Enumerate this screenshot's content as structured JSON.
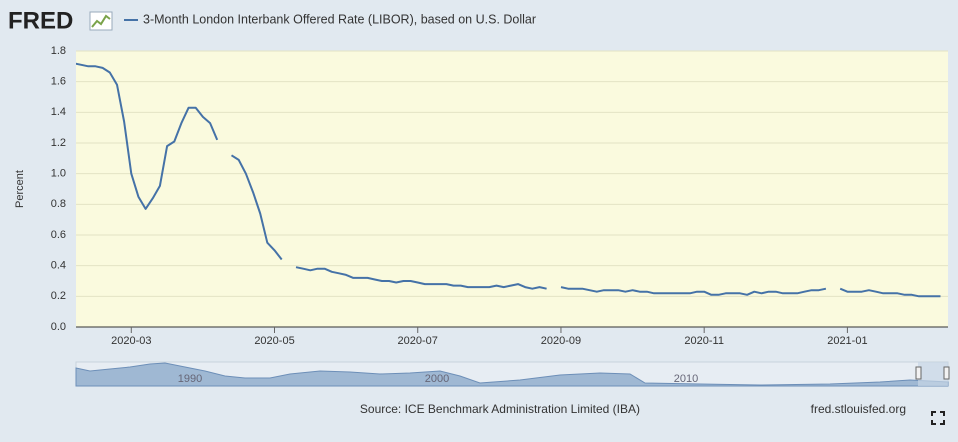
{
  "logo": "FRED",
  "chart_data": {
    "type": "line",
    "ylabel": "Percent",
    "categories": [
      null,
      null,
      null,
      null,
      null,
      null,
      null,
      null,
      "2020-03",
      null,
      null,
      null,
      null,
      null,
      null,
      null,
      null,
      null,
      null,
      null,
      null,
      null,
      null,
      null,
      null,
      null,
      null,
      null,
      "2020-05",
      null,
      null,
      null,
      null,
      null,
      null,
      null,
      null,
      null,
      null,
      null,
      null,
      null,
      null,
      null,
      null,
      null,
      null,
      null,
      "2020-07",
      null,
      null,
      null,
      null,
      null,
      null,
      null,
      null,
      null,
      null,
      null,
      null,
      null,
      null,
      null,
      null,
      null,
      null,
      null,
      "2020-09",
      null,
      null,
      null,
      null,
      null,
      null,
      null,
      null,
      null,
      null,
      null,
      null,
      null,
      null,
      null,
      null,
      null,
      null,
      null,
      "2020-11",
      null,
      null,
      null,
      null,
      null,
      null,
      null,
      null,
      null,
      null,
      null,
      null,
      null,
      null,
      null,
      null,
      null,
      null,
      null,
      "2021-01",
      null,
      null,
      null,
      null,
      null,
      null,
      null,
      null,
      null,
      null,
      null,
      null,
      null
    ],
    "series": [
      {
        "name": "3-Month London Interbank Offered Rate (LIBOR), based on U.S. Dollar",
        "color": "#4572a7",
        "values": [
          1.72,
          1.71,
          1.7,
          1.7,
          1.69,
          1.66,
          1.58,
          1.34,
          1.0,
          0.85,
          0.77,
          0.84,
          0.92,
          1.18,
          1.21,
          1.33,
          1.43,
          1.43,
          1.37,
          1.33,
          1.22,
          null,
          1.12,
          1.09,
          1.0,
          0.88,
          0.74,
          0.55,
          0.5,
          0.44,
          null,
          0.39,
          0.38,
          0.37,
          0.38,
          0.38,
          0.36,
          0.35,
          0.34,
          0.32,
          0.32,
          0.32,
          0.31,
          0.3,
          0.3,
          0.29,
          0.3,
          0.3,
          0.29,
          0.28,
          0.28,
          0.28,
          0.28,
          0.27,
          0.27,
          0.26,
          0.26,
          0.26,
          0.26,
          0.27,
          0.26,
          0.27,
          0.28,
          0.26,
          0.25,
          0.26,
          0.25,
          null,
          0.26,
          0.25,
          0.25,
          0.25,
          0.24,
          0.23,
          0.24,
          0.24,
          0.24,
          0.23,
          0.24,
          0.23,
          0.23,
          0.22,
          0.22,
          0.22,
          0.22,
          0.22,
          0.22,
          0.23,
          0.23,
          0.21,
          0.21,
          0.22,
          0.22,
          0.22,
          0.21,
          0.23,
          0.22,
          0.23,
          0.23,
          0.22,
          0.22,
          0.22,
          0.23,
          0.24,
          0.24,
          0.25,
          null,
          0.25,
          0.23,
          0.23,
          0.23,
          0.24,
          0.23,
          0.22,
          0.22,
          0.22,
          0.21,
          0.21,
          0.2,
          0.2,
          0.2,
          0.2
        ]
      }
    ],
    "ylim": [
      0,
      1.8
    ],
    "yticks": [
      {
        "value": 0,
        "label": "0.0"
      },
      0.2,
      0.4,
      0.6,
      0.8,
      {
        "value": 1,
        "label": "1.0"
      },
      1.2,
      1.4,
      1.6,
      1.8
    ],
    "grid": true
  },
  "navigator": {
    "labels": [
      "1990",
      "2000",
      "2010"
    ]
  },
  "source": "Source: ICE Benchmark Administration Limited (IBA)",
  "site": "fred.stlouisfed.org"
}
